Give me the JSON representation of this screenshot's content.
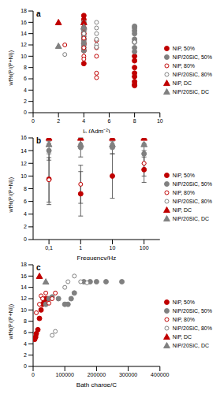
{
  "chart_data": [
    {
      "type": "scatter",
      "title": "a",
      "x_label": "iₚ (Adm⁻²)",
      "y_label": "wt%(P/(P+Ni))",
      "xlim": [
        0,
        10
      ],
      "xticks": [
        0,
        2,
        4,
        6,
        8,
        10
      ],
      "ylim": [
        0,
        18
      ],
      "yticks": [
        0,
        2,
        4,
        6,
        8,
        10,
        12,
        14,
        16,
        18
      ],
      "legend": "right",
      "series": [
        {
          "name": "NiP, 50%",
          "color": "#c00000",
          "marker": "circle",
          "x": [
            4,
            4,
            4,
            4,
            4,
            4,
            4,
            4,
            4,
            8,
            8,
            8,
            8,
            8,
            8,
            8,
            8
          ],
          "values": [
            17.2,
            16.5,
            15.8,
            15,
            14,
            13,
            12.2,
            11,
            8.7,
            10,
            9.2,
            8,
            7,
            6.4,
            5.5,
            5,
            4.8
          ]
        },
        {
          "name": "NiP/20SiC, 50%",
          "color": "#808080",
          "marker": "circle",
          "x": [
            4,
            4,
            4,
            4,
            4,
            4,
            4,
            4,
            4,
            8,
            8,
            8,
            8,
            8,
            8,
            8,
            8
          ],
          "values": [
            16,
            15,
            14.5,
            13.5,
            13,
            12.5,
            12,
            11.5,
            11,
            15.3,
            15,
            14.5,
            14,
            13,
            12.5,
            11.5,
            10.8
          ]
        },
        {
          "name": "NiP, 80%",
          "color": "#c00000",
          "marker": "open_circle",
          "x": [
            2.5,
            4,
            4,
            4,
            4,
            4,
            4,
            5,
            5,
            5,
            5,
            5
          ],
          "values": [
            12,
            15,
            14,
            13.2,
            11.5,
            10,
            9.5,
            12.8,
            11.5,
            10,
            7,
            6.2
          ]
        },
        {
          "name": "NiP/20SiC, 80%",
          "color": "#808080",
          "marker": "open_circle",
          "x": [
            2.5,
            4,
            4,
            5,
            5,
            5,
            5,
            5,
            5,
            8
          ],
          "values": [
            10.3,
            15.8,
            14,
            16,
            15,
            14,
            13,
            12,
            11.6,
            12.5
          ]
        },
        {
          "name": "NiP, DC",
          "color": "#c00000",
          "marker": "triangle",
          "x": [
            2,
            4
          ],
          "values": [
            16,
            16
          ]
        },
        {
          "name": "NiP/20SiC, DC",
          "color": "#808080",
          "marker": "triangle",
          "x": [
            2,
            4
          ],
          "values": [
            11.8,
            15.2
          ]
        }
      ]
    },
    {
      "type": "scatter",
      "title": "b",
      "x_label": "Frequency/Hz",
      "y_label": "wt%(P/(P+Ni))",
      "categories": [
        "0,1",
        "1",
        "10",
        "100"
      ],
      "ylim": [
        0,
        16
      ],
      "yticks": [
        0,
        2,
        4,
        6,
        8,
        10,
        12,
        14,
        16
      ],
      "legend": "right",
      "series": [
        {
          "name": "NiP, 50%",
          "color": "#c00000",
          "marker": "circle",
          "values": [
            9.5,
            7.2,
            10,
            11
          ],
          "errors": [
            4,
            3.5,
            3.5,
            2
          ]
        },
        {
          "name": "NiP/20SiC, 50%",
          "color": "#808080",
          "marker": "circle",
          "values": [
            14,
            14.5,
            14.5,
            13.5
          ],
          "errors": [
            1.5,
            1.5,
            1,
            1.5
          ]
        },
        {
          "name": "NiP, 80%",
          "color": "#c00000",
          "marker": "open_circle",
          "values": [
            9.4,
            8.7,
            null,
            12
          ],
          "errors": [
            3.5,
            3,
            null,
            2
          ]
        },
        {
          "name": "NiP/20SiC, 80%",
          "color": "#808080",
          "marker": "open_circle",
          "values": [
            15,
            15,
            15,
            15
          ]
        },
        {
          "name": "NiP, DC",
          "color": "#c00000",
          "marker": "triangle",
          "values": [
            16,
            16,
            16,
            16
          ]
        },
        {
          "name": "NiP/20SiC, DC",
          "color": "#808080",
          "marker": "triangle",
          "values": [
            15,
            15,
            15,
            15
          ]
        }
      ]
    },
    {
      "type": "scatter",
      "title": "c",
      "x_label": "Bath charge/C",
      "y_label": "wt%(P/(P+Ni))",
      "xlim": [
        0,
        400000
      ],
      "xticks": [
        0,
        100000,
        200000,
        300000,
        400000
      ],
      "ylim": [
        0,
        18
      ],
      "yticks": [
        0,
        2,
        4,
        6,
        8,
        10,
        12,
        14,
        16,
        18
      ],
      "legend": "right",
      "series": [
        {
          "name": "NiP, 50%",
          "color": "#c00000",
          "marker": "circle",
          "x": [
            5000,
            8000,
            10000,
            15000,
            20000,
            25000,
            30000,
            35000,
            40000,
            45000
          ],
          "values": [
            4.8,
            5.2,
            5.8,
            6.5,
            8.5,
            10,
            11,
            11.5,
            12,
            12
          ]
        },
        {
          "name": "NiP/20SiC, 50%",
          "color": "#808080",
          "marker": "circle",
          "x": [
            40000,
            50000,
            60000,
            80000,
            100000,
            110000,
            120000,
            130000,
            160000,
            180000,
            200000,
            230000,
            280000
          ],
          "values": [
            11,
            12,
            12.3,
            12,
            11,
            11,
            12,
            13,
            15,
            15,
            15,
            15,
            15
          ]
        },
        {
          "name": "NiP, 80%",
          "color": "#c00000",
          "marker": "open_circle",
          "x": [
            10000,
            20000,
            25000,
            30000,
            40000,
            50000,
            60000,
            70000
          ],
          "values": [
            9.5,
            11,
            12.5,
            12,
            13,
            11.2,
            12,
            13
          ]
        },
        {
          "name": "NiP/20SiC, 80%",
          "color": "#808080",
          "marker": "open_circle",
          "x": [
            60000,
            70000,
            100000,
            110000,
            130000,
            150000,
            170000
          ],
          "values": [
            5.5,
            6.2,
            14,
            15,
            16,
            15,
            14.8
          ]
        },
        {
          "name": "NiP, DC",
          "color": "#c00000",
          "marker": "triangle",
          "x": [
            20000
          ],
          "values": [
            16
          ]
        },
        {
          "name": "NiP/20SiC, DC",
          "color": "#808080",
          "marker": "triangle",
          "x": [
            40000
          ],
          "values": [
            15
          ]
        }
      ]
    }
  ]
}
